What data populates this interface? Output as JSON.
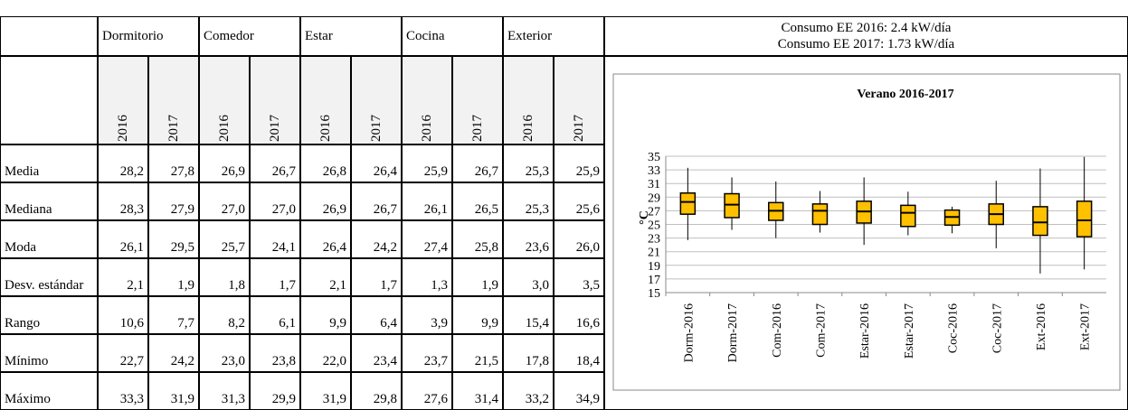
{
  "header": {
    "regions": [
      "Dormitorio",
      "Comedor",
      "Estar",
      "Cocina",
      "Exterior"
    ],
    "summary": [
      "Consumo EE 2016: 2.4 kW/día",
      "Consumo EE 2017: 1.73 kW/día"
    ]
  },
  "table": {
    "years": [
      "2016",
      "2017",
      "2016",
      "2017",
      "2016",
      "2017",
      "2016",
      "2017",
      "2016",
      "2017"
    ],
    "rows": [
      {
        "label": "Media",
        "values": [
          "28,2",
          "27,8",
          "26,9",
          "26,7",
          "26,8",
          "26,4",
          "25,9",
          "26,7",
          "25,3",
          "25,9"
        ]
      },
      {
        "label": "Mediana",
        "values": [
          "28,3",
          "27,9",
          "27,0",
          "27,0",
          "26,9",
          "26,7",
          "26,1",
          "26,5",
          "25,3",
          "25,6"
        ]
      },
      {
        "label": "Moda",
        "values": [
          "26,1",
          "29,5",
          "25,7",
          "24,1",
          "26,4",
          "24,2",
          "27,4",
          "25,8",
          "23,6",
          "26,0"
        ]
      },
      {
        "label": "Desv. estándar",
        "values": [
          "2,1",
          "1,9",
          "1,8",
          "1,7",
          "2,1",
          "1,7",
          "1,3",
          "1,9",
          "3,0",
          "3,5"
        ]
      },
      {
        "label": "Rango",
        "values": [
          "10,6",
          "7,7",
          "8,2",
          "6,1",
          "9,9",
          "6,4",
          "3,9",
          "9,9",
          "15,4",
          "16,6"
        ]
      },
      {
        "label": "Mínimo",
        "values": [
          "22,7",
          "24,2",
          "23,0",
          "23,8",
          "22,0",
          "23,4",
          "23,7",
          "21,5",
          "17,8",
          "18,4"
        ]
      },
      {
        "label": "Máximo",
        "values": [
          "33,3",
          "31,9",
          "31,3",
          "29,9",
          "31,9",
          "29,8",
          "27,6",
          "31,4",
          "33,2",
          "34,9"
        ]
      }
    ]
  },
  "chart_data": {
    "type": "box",
    "title": "Verano 2016-2017",
    "y_label": "°C",
    "color": "#ffc000",
    "categories": [
      "Dorm-2016",
      "Dorm-2017",
      "Com-2016",
      "Com-2017",
      "Estar-2016",
      "Estar-2017",
      "Coc-2016",
      "Coc-2017",
      "Ext-2016",
      "Ext-2017"
    ],
    "min": [
      22.7,
      24.2,
      23.0,
      23.8,
      22.0,
      23.4,
      23.7,
      21.5,
      17.8,
      18.4
    ],
    "q1": [
      26.5,
      26.0,
      25.6,
      25.0,
      25.2,
      24.7,
      24.9,
      25.0,
      23.4,
      23.2
    ],
    "median": [
      28.3,
      27.9,
      27.0,
      27.0,
      26.9,
      26.7,
      26.1,
      26.5,
      25.3,
      25.6
    ],
    "q3": [
      29.6,
      29.5,
      28.2,
      28.0,
      28.4,
      27.8,
      27.1,
      28.0,
      27.6,
      28.4
    ],
    "max": [
      33.3,
      31.9,
      31.3,
      29.9,
      31.9,
      29.8,
      27.6,
      31.4,
      33.2,
      34.9
    ],
    "ylim": [
      15,
      35
    ],
    "yticks": [
      15,
      17,
      19,
      21,
      23,
      25,
      27,
      29,
      31,
      33,
      35
    ],
    "grid": true
  }
}
